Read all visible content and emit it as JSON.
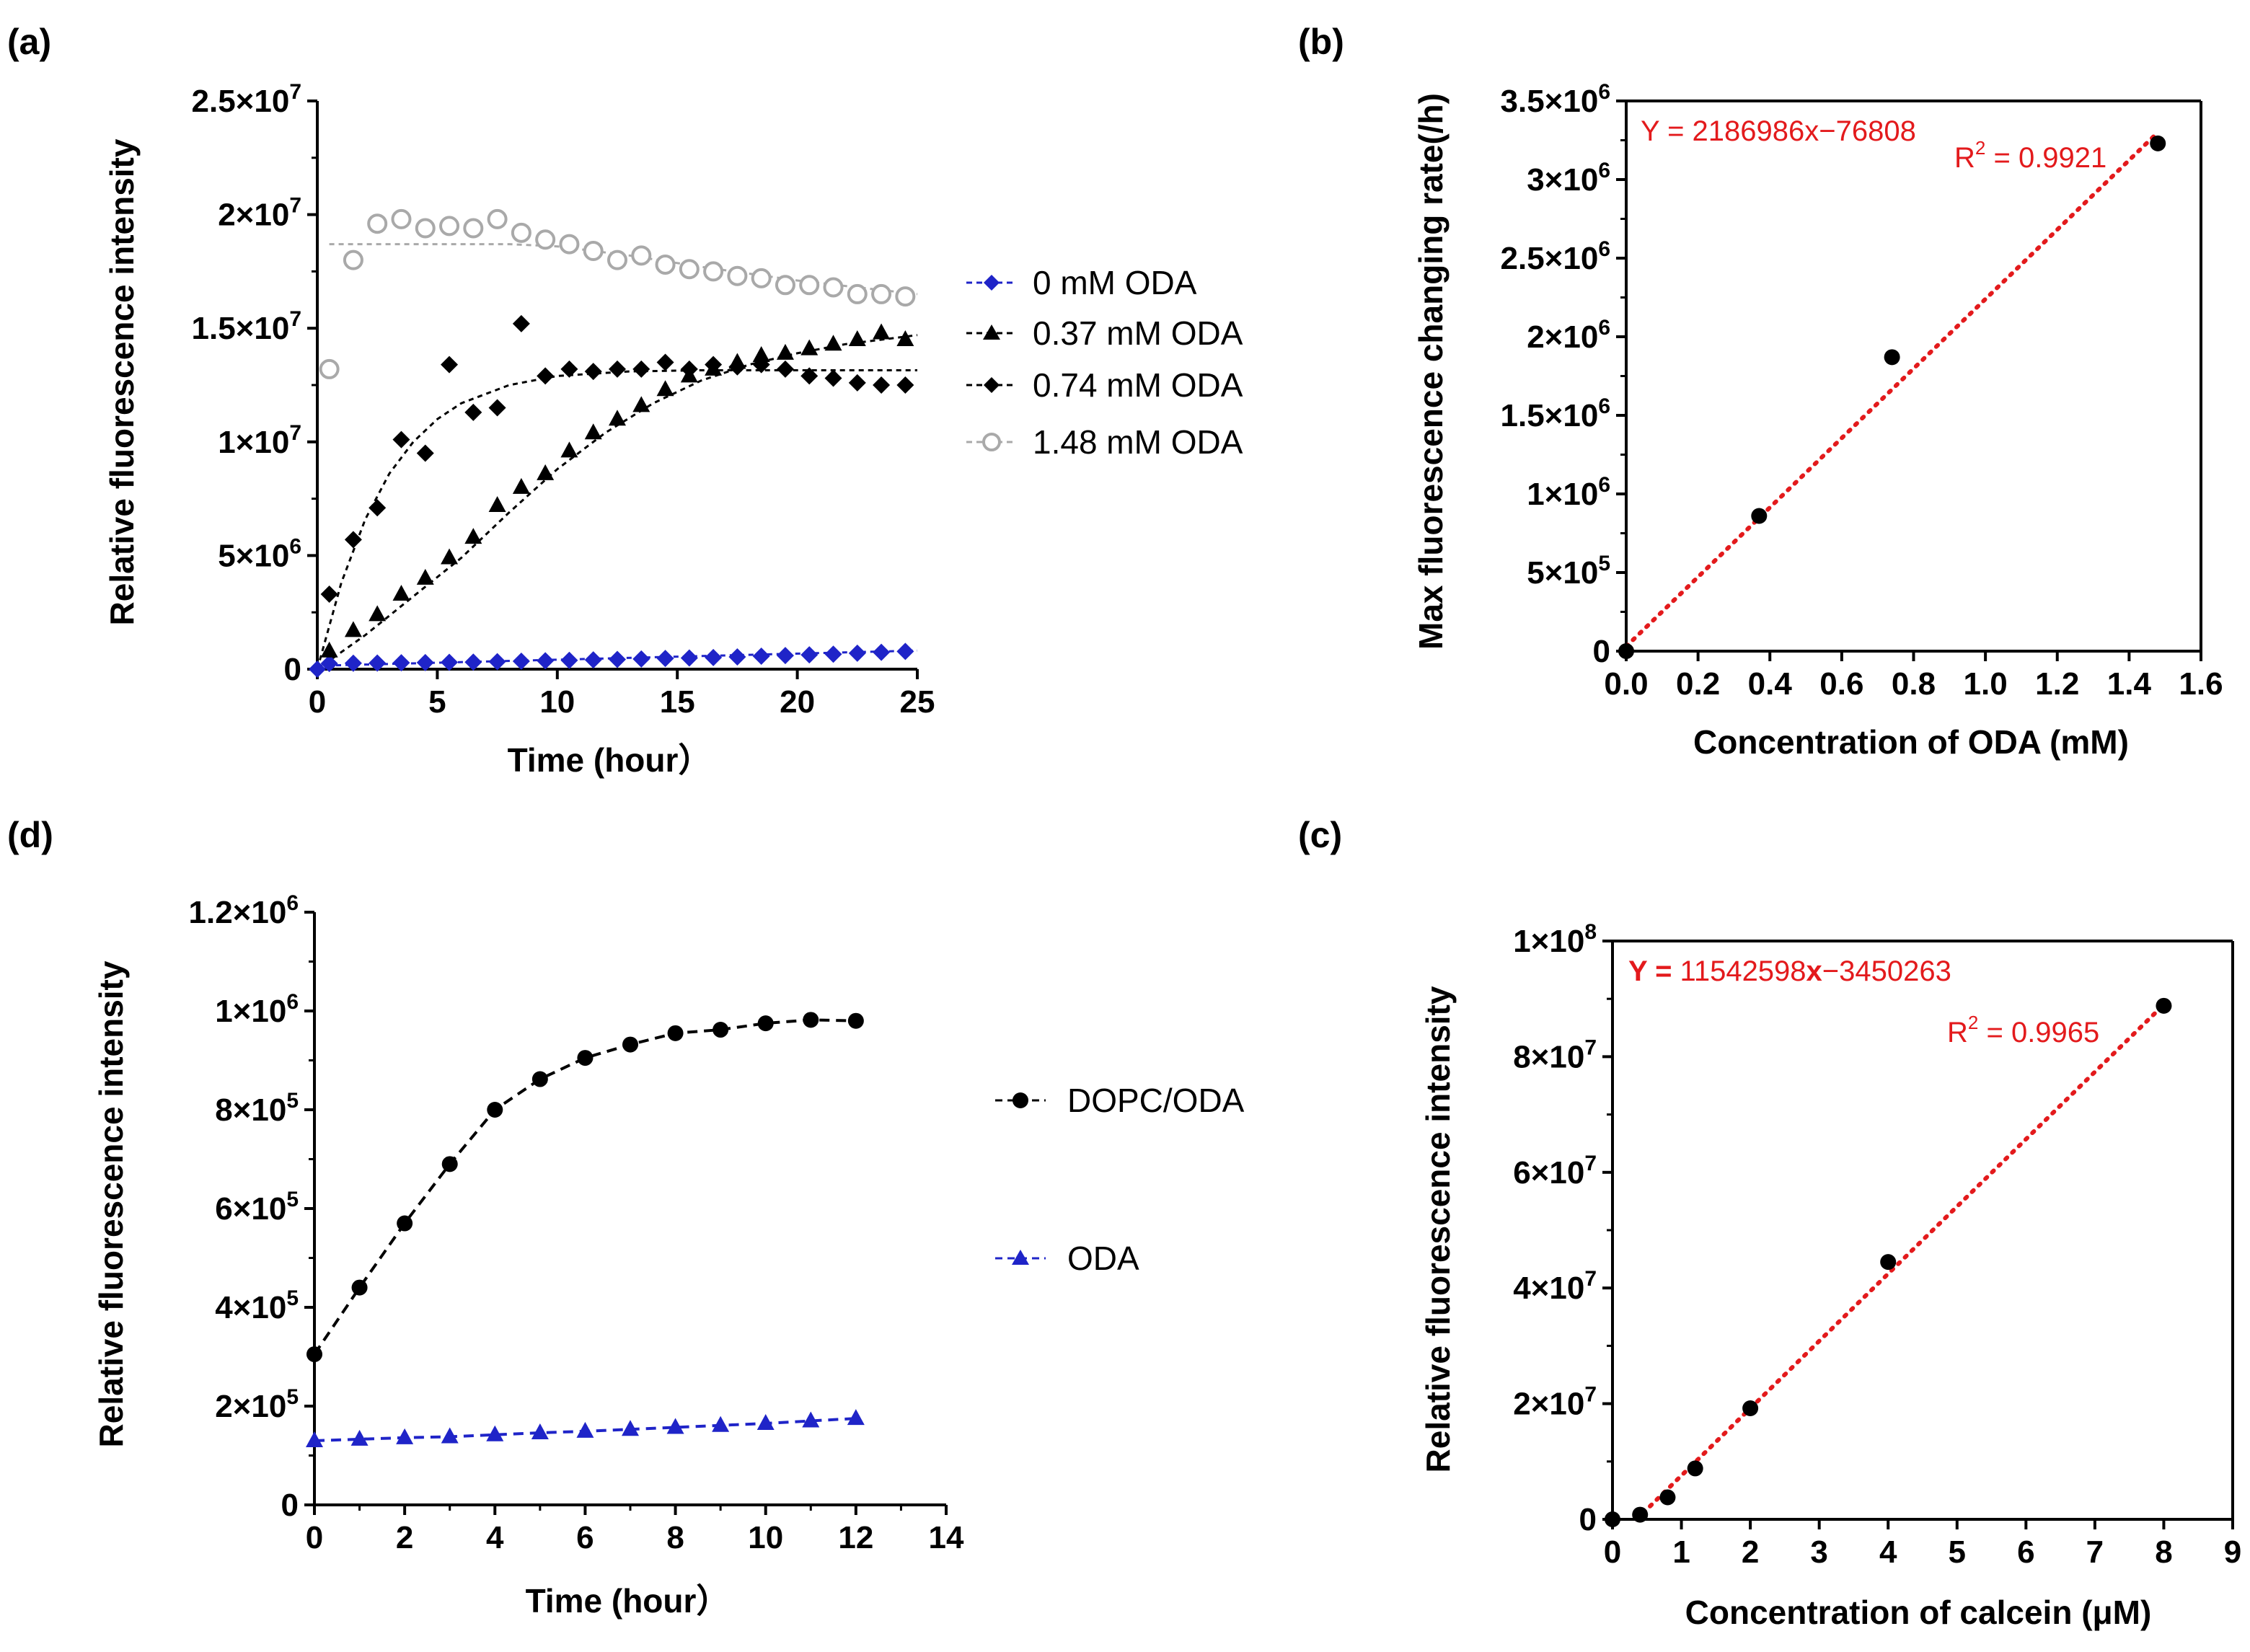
{
  "panels": {
    "a": {
      "label": "(a)",
      "xlabel": "Time (hour）",
      "ylabel": "Relative fluorescence intensity",
      "xticks": [
        "0",
        "5",
        "10",
        "15",
        "20",
        "25"
      ],
      "yticks": [
        "0",
        "5×10",
        "1×10",
        "1.5×10",
        "2×10",
        "2.5×10"
      ],
      "ytick_exps": [
        "",
        "6",
        "7",
        "7",
        "7",
        "7"
      ],
      "legend": [
        "0 mM ODA",
        "0.37 mM ODA",
        "0.74 mM ODA",
        "1.48 mM ODA"
      ]
    },
    "b": {
      "label": "(b)",
      "xlabel": "Concentration of ODA (mM)",
      "ylabel": "Max fluorescence changing rate(/h)",
      "xticks": [
        "0.0",
        "0.2",
        "0.4",
        "0.6",
        "0.8",
        "1.0",
        "1.2",
        "1.4",
        "1.6"
      ],
      "yticks": [
        "0",
        "5×10",
        "1×10",
        "1.5×10",
        "2×10",
        "2.5×10",
        "3×10",
        "3.5×10"
      ],
      "ytick_exps": [
        "",
        "5",
        "6",
        "6",
        "6",
        "6",
        "6",
        "6"
      ],
      "equation": "Y = 2186986x−76808",
      "r2_prefix": "R",
      "r2_sup": "2",
      "r2_value": " = 0.9921"
    },
    "c": {
      "label": "(c)",
      "xlabel": "Concentration of calcein (μM)",
      "ylabel": "Relative fluorescence intensity",
      "xticks": [
        "0",
        "1",
        "2",
        "3",
        "4",
        "5",
        "6",
        "7",
        "8",
        "9"
      ],
      "yticks": [
        "0",
        "2×10",
        "4×10",
        "6×10",
        "8×10",
        "1×10"
      ],
      "ytick_exps": [
        "",
        "7",
        "7",
        "7",
        "7",
        "8"
      ],
      "equation_y": "Y = ",
      "equation_num1": "11542598",
      "equation_x": "x",
      "equation_rest": "−3450263",
      "r2_prefix": "R",
      "r2_sup": "2",
      "r2_value": " = 0.9965"
    },
    "d": {
      "label": "(d)",
      "xlabel": "Time (hour）",
      "ylabel": "Relative fluorescence intensity",
      "xticks": [
        "0",
        "2",
        "4",
        "6",
        "8",
        "10",
        "12",
        "14"
      ],
      "yticks": [
        "0",
        "2×10",
        "4×10",
        "6×10",
        "8×10",
        "1×10",
        "1.2×10"
      ],
      "ytick_exps": [
        "",
        "5",
        "5",
        "5",
        "5",
        "6",
        "6"
      ],
      "legend": [
        "DOPC/ODA",
        "ODA"
      ]
    }
  },
  "chart_data": [
    {
      "id": "a",
      "type": "scatter",
      "title": "",
      "xlabel": "Time (hour)",
      "ylabel": "Relative fluorescence intensity",
      "xlim": [
        0,
        25
      ],
      "ylim": [
        0,
        25000000
      ],
      "series": [
        {
          "name": "0 mM ODA",
          "color": "#1f24c8",
          "marker": "diamond",
          "x": [
            0,
            0.5,
            1.5,
            2.5,
            3.5,
            4.5,
            5.5,
            6.5,
            7.5,
            8.5,
            9.5,
            10.5,
            11.5,
            12.5,
            13.5,
            14.5,
            15.5,
            16.5,
            17.5,
            18.5,
            19.5,
            20.5,
            21.5,
            22.5,
            23.5,
            24.5
          ],
          "values": [
            0,
            250000,
            260000,
            270000,
            280000,
            290000,
            300000,
            310000,
            330000,
            350000,
            370000,
            390000,
            410000,
            430000,
            450000,
            470000,
            490000,
            510000,
            540000,
            570000,
            600000,
            630000,
            660000,
            700000,
            740000,
            780000
          ],
          "fit": [
            [
              0,
              150000
            ],
            [
              25,
              820000
            ]
          ]
        },
        {
          "name": "0.37 mM ODA",
          "color": "#000000",
          "marker": "triangle",
          "x": [
            0.5,
            1.5,
            2.5,
            3.5,
            4.5,
            5.5,
            6.5,
            7.5,
            8.5,
            9.5,
            10.5,
            11.5,
            12.5,
            13.5,
            14.5,
            15.5,
            16.5,
            17.5,
            18.5,
            19.5,
            20.5,
            21.5,
            22.5,
            23.5,
            24.5
          ],
          "values": [
            800000,
            1700000,
            2400000,
            3300000,
            4000000,
            4900000,
            5800000,
            7200000,
            8000000,
            8600000,
            9600000,
            10400000,
            11000000,
            11600000,
            12300000,
            12900000,
            13200000,
            13500000,
            13800000,
            13900000,
            14100000,
            14300000,
            14500000,
            14800000,
            14500000
          ],
          "fit": [
            [
              0,
              0
            ],
            [
              2,
              1500000
            ],
            [
              4,
              3200000
            ],
            [
              6,
              4900000
            ],
            [
              8,
              6900000
            ],
            [
              10,
              8800000
            ],
            [
              12,
              10400000
            ],
            [
              14,
              11700000
            ],
            [
              16,
              12700000
            ],
            [
              18,
              13400000
            ],
            [
              20,
              13900000
            ],
            [
              22,
              14300000
            ],
            [
              25,
              14700000
            ]
          ]
        },
        {
          "name": "0.74 mM ODA",
          "color": "#000000",
          "marker": "diamond",
          "x": [
            0.5,
            1.5,
            2.5,
            3.5,
            4.5,
            5.5,
            6.5,
            7.5,
            8.5,
            9.5,
            10.5,
            11.5,
            12.5,
            13.5,
            14.5,
            15.5,
            16.5,
            17.5,
            18.5,
            19.5,
            20.5,
            21.5,
            22.5,
            23.5,
            24.5
          ],
          "values": [
            3300000,
            5700000,
            7100000,
            10100000,
            9500000,
            13400000,
            11300000,
            11500000,
            15200000,
            12900000,
            13200000,
            13100000,
            13200000,
            13200000,
            13500000,
            13200000,
            13400000,
            13300000,
            13400000,
            13200000,
            12900000,
            12800000,
            12600000,
            12500000,
            12500000
          ],
          "fit": [
            [
              0,
              0
            ],
            [
              1,
              3800000
            ],
            [
              2,
              6600000
            ],
            [
              3,
              8600000
            ],
            [
              4,
              10000000
            ],
            [
              5,
              11000000
            ],
            [
              6,
              11700000
            ],
            [
              8,
              12500000
            ],
            [
              10,
              12900000
            ],
            [
              13,
              13100000
            ],
            [
              16,
              13150000
            ],
            [
              25,
              13150000
            ]
          ]
        },
        {
          "name": "1.48 mM ODA",
          "color": "#a9a9a9",
          "marker": "circle-open",
          "x": [
            0.5,
            1.5,
            2.5,
            3.5,
            4.5,
            5.5,
            6.5,
            7.5,
            8.5,
            9.5,
            10.5,
            11.5,
            12.5,
            13.5,
            14.5,
            15.5,
            16.5,
            17.5,
            18.5,
            19.5,
            20.5,
            21.5,
            22.5,
            23.5,
            24.5
          ],
          "values": [
            13200000,
            18000000,
            19600000,
            19800000,
            19400000,
            19500000,
            19400000,
            19800000,
            19200000,
            18900000,
            18700000,
            18400000,
            18000000,
            18200000,
            17800000,
            17600000,
            17500000,
            17300000,
            17200000,
            16900000,
            16900000,
            16800000,
            16500000,
            16500000,
            16400000
          ],
          "fit": [
            [
              0.5,
              18700000
            ],
            [
              8,
              18700000
            ],
            [
              10,
              18600000
            ],
            [
              13,
              18200000
            ],
            [
              16,
              17700000
            ],
            [
              20,
              17100000
            ],
            [
              25,
              16500000
            ]
          ]
        }
      ],
      "legend_position": "right"
    },
    {
      "id": "b",
      "type": "scatter",
      "title": "",
      "xlabel": "Concentration of ODA (mM)",
      "ylabel": "Max fluorescence changing rate(/h)",
      "xlim": [
        0,
        1.6
      ],
      "ylim": [
        0,
        3500000
      ],
      "series": [
        {
          "name": "data",
          "color": "#000000",
          "marker": "circle",
          "x": [
            0,
            0.37,
            0.74,
            1.48
          ],
          "values": [
            0,
            860000,
            1870000,
            3230000
          ]
        },
        {
          "name": "fit",
          "color": "#e31a1c",
          "line": "dotted",
          "x": [
            0,
            1.48
          ],
          "values": [
            30000,
            3300000
          ]
        }
      ],
      "annotations": [
        "Y = 2186986x−76808",
        "R2 = 0.9921"
      ]
    },
    {
      "id": "c",
      "type": "scatter",
      "title": "",
      "xlabel": "Concentration of calcein (μM)",
      "ylabel": "Relative fluorescence intensity",
      "xlim": [
        0,
        9
      ],
      "ylim": [
        0,
        100000000
      ],
      "series": [
        {
          "name": "data",
          "color": "#000000",
          "marker": "circle",
          "x": [
            0,
            0.4,
            0.8,
            1.2,
            2,
            4,
            8
          ],
          "values": [
            0,
            800000,
            3800000,
            8800000,
            19200000,
            44500000,
            88800000
          ]
        },
        {
          "name": "fit",
          "color": "#e31a1c",
          "line": "dotted",
          "x": [
            0.35,
            8
          ],
          "values": [
            0,
            89000000
          ]
        }
      ],
      "annotations": [
        "Y = 11542598x−3450263",
        "R2 = 0.9965"
      ]
    },
    {
      "id": "d",
      "type": "line",
      "title": "",
      "xlabel": "Time (hour)",
      "ylabel": "Relative fluorescence intensity",
      "xlim": [
        0,
        14
      ],
      "ylim": [
        0,
        1200000
      ],
      "series": [
        {
          "name": "DOPC/ODA",
          "color": "#000000",
          "marker": "circle",
          "line": "dashed",
          "x": [
            0,
            1,
            2,
            3,
            4,
            5,
            6,
            7,
            8,
            9,
            10,
            11,
            12
          ],
          "values": [
            305000,
            440000,
            570000,
            690000,
            800000,
            862000,
            905000,
            932000,
            955000,
            962000,
            975000,
            982000,
            980000
          ]
        },
        {
          "name": "ODA",
          "color": "#1f24c8",
          "marker": "triangle",
          "line": "dashed",
          "x": [
            0,
            1,
            2,
            3,
            4,
            5,
            6,
            7,
            8,
            9,
            10,
            11,
            12
          ],
          "values": [
            130000,
            133000,
            136000,
            138000,
            142000,
            146000,
            149000,
            153000,
            157000,
            161000,
            165000,
            170000,
            175000
          ]
        }
      ],
      "legend_position": "right"
    }
  ]
}
